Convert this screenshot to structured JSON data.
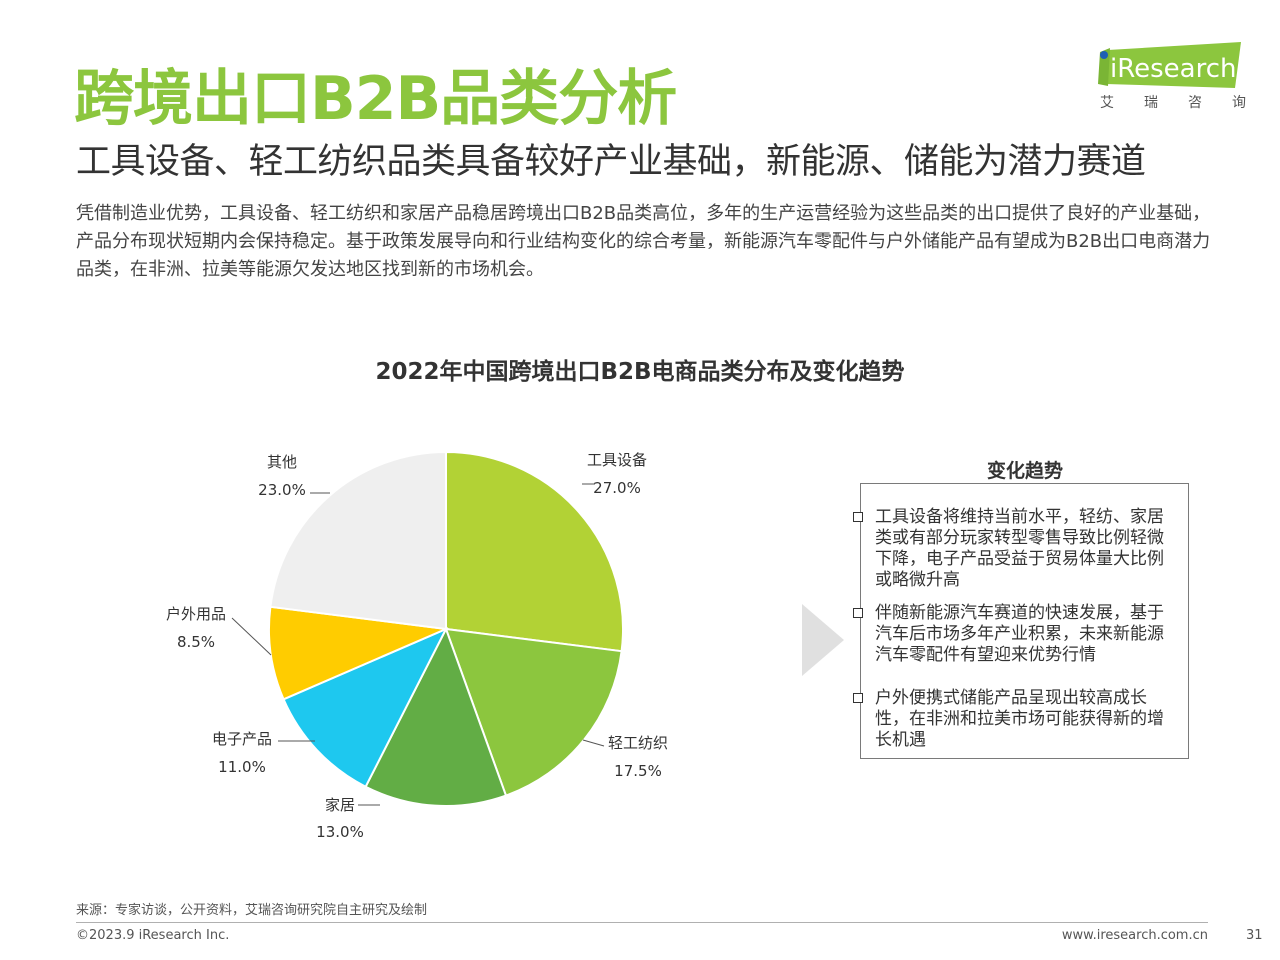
{
  "header": {
    "title": "跨境出口B2B品类分析",
    "subtitle": "工具设备、轻工纺织品类具备较好产业基础，新能源、储能为潜力赛道",
    "intro": "凭借制造业优势，工具设备、轻工纺织和家居产品稳居跨境出口B2B品类高位，多年的生产运营经验为这些品类的出口提供了良好的产业基础，产品分布现状短期内会保持稳定。基于政策发展导向和行业结构变化的综合考量，新能源汽车零配件与户外储能产品有望成为B2B出口电商潜力品类，在非洲、拉美等能源欠发达地区找到新的市场机会。"
  },
  "logo": {
    "wordmark": "iResearch",
    "tagline": [
      "艾",
      "瑞",
      "咨",
      "询"
    ],
    "color": "#8cc63e"
  },
  "chart_data": {
    "type": "pie",
    "title": "2022年中国跨境出口B2B电商品类分布及变化趋势",
    "slices": [
      {
        "label": "工具设备",
        "value": 27.0,
        "display": "27.0%",
        "color": "#b2d235"
      },
      {
        "label": "轻工纺织",
        "value": 17.5,
        "display": "17.5%",
        "color": "#8cc63e"
      },
      {
        "label": "家居",
        "value": 13.0,
        "display": "13.0%",
        "color": "#62ad45"
      },
      {
        "label": "电子产品",
        "value": 11.0,
        "display": "11.0%",
        "color": "#1ec8ef"
      },
      {
        "label": "户外用品",
        "value": 8.5,
        "display": "8.5%",
        "color": "#ffcc00"
      },
      {
        "label": "其他",
        "value": 23.0,
        "display": "23.0%",
        "color": "#efefef"
      }
    ]
  },
  "trend": {
    "title": "变化趋势",
    "items": [
      "工具设备将维持当前水平，轻纺、家居类或有部分玩家转型零售导致比例轻微下降，电子产品受益于贸易体量大比例或略微升高",
      "伴随新能源汽车赛道的快速发展，基于汽车后市场多年产业积累，未来新能源汽车零配件有望迎来优势行情",
      "户外便携式储能产品呈现出较高成长性，在非洲和拉美市场可能获得新的增长机遇"
    ]
  },
  "footer": {
    "source": "来源：专家访谈，公开资料，艾瑞咨询研究院自主研究及绘制",
    "copyright": "©2023.9 iResearch Inc.",
    "website": "www.iresearch.com.cn",
    "page": "31"
  }
}
